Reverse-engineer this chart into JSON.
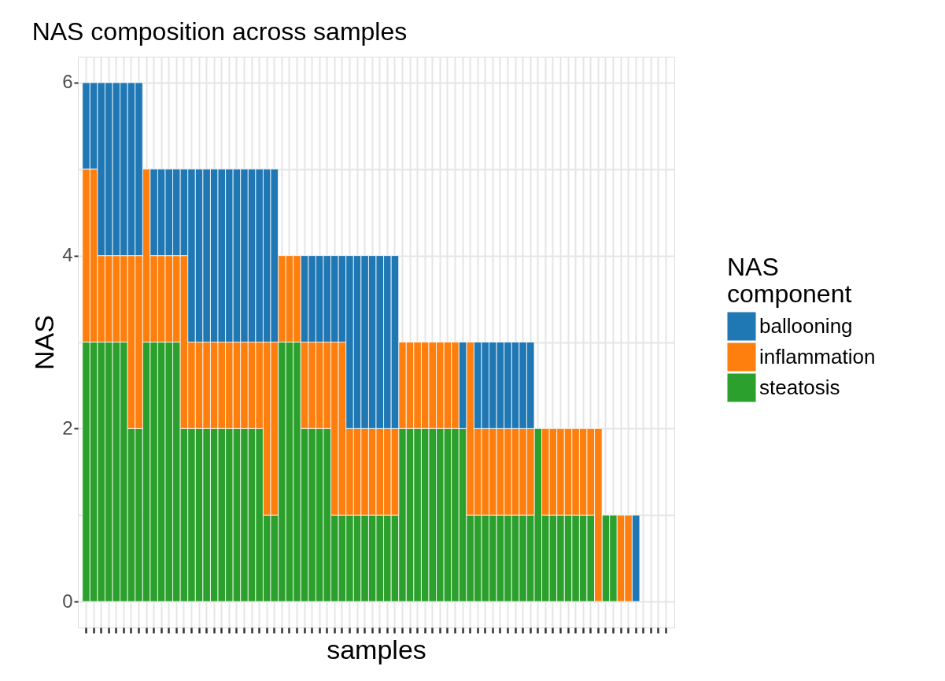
{
  "chart_data": {
    "type": "bar",
    "title": "NAS composition across samples",
    "xlabel": "samples",
    "ylabel": "NAS",
    "legend_title": "NAS\ncomponent",
    "categories": [
      null,
      null,
      null,
      null,
      null,
      null,
      null,
      null,
      null,
      null,
      null,
      null,
      null,
      null,
      null,
      null,
      null,
      null,
      null,
      null,
      null,
      null,
      null,
      null,
      null,
      null,
      null,
      null,
      null,
      null,
      null,
      null,
      null,
      null,
      null,
      null,
      null,
      null,
      null,
      null,
      null,
      null,
      null,
      null,
      null,
      null,
      null,
      null,
      null,
      null,
      null,
      null,
      null,
      null,
      null,
      null,
      null,
      null,
      null,
      null,
      null,
      null,
      null,
      null,
      null,
      null,
      null,
      null,
      null,
      null,
      null,
      null,
      null,
      null,
      null,
      null,
      null,
      null
    ],
    "stacked": true,
    "series": [
      {
        "name": "steatosis",
        "color": "#2ca02c",
        "values": [
          3,
          3,
          3,
          3,
          3,
          3,
          2,
          2,
          3,
          3,
          3,
          3,
          3,
          2,
          2,
          2,
          2,
          2,
          2,
          2,
          2,
          2,
          2,
          2,
          1,
          1,
          3,
          3,
          3,
          2,
          2,
          2,
          2,
          1,
          1,
          1,
          1,
          1,
          1,
          1,
          1,
          1,
          2,
          2,
          2,
          2,
          2,
          2,
          2,
          2,
          2,
          1,
          1,
          1,
          1,
          1,
          1,
          1,
          1,
          1,
          2,
          1,
          1,
          1,
          1,
          1,
          1,
          1,
          0,
          1,
          1,
          0,
          0,
          0,
          0,
          0,
          0,
          0
        ]
      },
      {
        "name": "inflammation",
        "color": "#ff7f0e",
        "values": [
          2,
          2,
          1,
          1,
          1,
          1,
          2,
          2,
          2,
          1,
          1,
          1,
          1,
          2,
          1,
          1,
          1,
          1,
          1,
          1,
          1,
          1,
          1,
          1,
          2,
          2,
          1,
          1,
          1,
          1,
          1,
          1,
          1,
          2,
          2,
          1,
          1,
          1,
          1,
          1,
          1,
          1,
          1,
          1,
          1,
          1,
          1,
          1,
          1,
          1,
          0,
          2,
          1,
          1,
          1,
          1,
          1,
          1,
          1,
          1,
          0,
          1,
          1,
          1,
          1,
          1,
          1,
          1,
          2,
          0,
          0,
          1,
          1,
          0,
          0,
          0,
          0,
          0
        ]
      },
      {
        "name": "ballooning",
        "color": "#1f77b4",
        "values": [
          1,
          1,
          2,
          2,
          2,
          2,
          2,
          2,
          0,
          1,
          1,
          1,
          1,
          1,
          2,
          2,
          2,
          2,
          2,
          2,
          2,
          2,
          2,
          2,
          2,
          2,
          0,
          0,
          0,
          1,
          1,
          1,
          1,
          1,
          1,
          2,
          2,
          2,
          2,
          2,
          2,
          2,
          0,
          0,
          0,
          0,
          0,
          0,
          0,
          0,
          1,
          0,
          1,
          1,
          1,
          1,
          1,
          1,
          1,
          1,
          0,
          0,
          0,
          0,
          0,
          0,
          0,
          0,
          0,
          0,
          0,
          0,
          0,
          1,
          0,
          0,
          0,
          0
        ]
      }
    ],
    "ylim": [
      -0.3,
      6.3
    ],
    "yticks": [
      0,
      {
        "value": 1,
        "label": null
      },
      2,
      {
        "value": 3,
        "label": null
      },
      4,
      {
        "value": 5,
        "label": null
      },
      6
    ],
    "grid": true,
    "legend": "right",
    "tick_labels": "y"
  }
}
